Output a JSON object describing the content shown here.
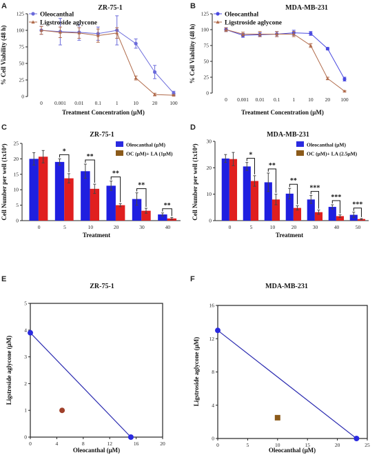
{
  "chart_data": [
    {
      "id": "A",
      "panel_label": "A",
      "type": "line",
      "title": "ZR-75-1",
      "xlabel": "Treatment Concentration (μM)",
      "ylabel": "% Cell Viability (48 h)",
      "categories": [
        "0",
        "0.001",
        "0.01",
        "0.1",
        "1",
        "10",
        "20",
        "100"
      ],
      "ylim": [
        0,
        125
      ],
      "yticks": [
        0,
        25,
        50,
        75,
        100,
        125
      ],
      "legend_position": "top-left",
      "series": [
        {
          "name": "Oleocanthal",
          "color": "#6b6bdb",
          "marker": "circle",
          "values": [
            100,
            98,
            97,
            95,
            100,
            80,
            37,
            5
          ],
          "errors": [
            6,
            20,
            12,
            10,
            22,
            7,
            10,
            3
          ]
        },
        {
          "name": "Ligstroside aglycone",
          "color": "#b06a4a",
          "marker": "triangle",
          "values": [
            100,
            97,
            96,
            92,
            96,
            28,
            3,
            2
          ],
          "errors": [
            6,
            8,
            8,
            10,
            8,
            3,
            2,
            1
          ]
        }
      ]
    },
    {
      "id": "B",
      "panel_label": "B",
      "type": "line",
      "title": "MDA-MB-231",
      "xlabel": "Treatment Concentration (μM)",
      "ylabel": "% Cell Viability (48 h)",
      "categories": [
        "0",
        "0.001",
        "0.01",
        "0.1",
        "1",
        "10",
        "20",
        "100"
      ],
      "ylim": [
        0,
        125
      ],
      "yticks": [
        0,
        25,
        50,
        75,
        100,
        125
      ],
      "legend_position": "top-left",
      "series": [
        {
          "name": "Oleocanthal",
          "color": "#4a4ae0",
          "marker": "circle",
          "values": [
            100,
            91,
            92,
            93,
            95,
            94,
            70,
            22
          ],
          "errors": [
            3,
            3,
            3,
            4,
            4,
            3,
            2,
            3
          ]
        },
        {
          "name": "Ligstroside aglycone",
          "color": "#b06a4a",
          "marker": "triangle",
          "values": [
            100,
            93,
            93,
            93,
            93,
            75,
            23,
            3
          ],
          "errors": [
            3,
            3,
            4,
            4,
            4,
            3,
            2,
            1
          ]
        }
      ]
    },
    {
      "id": "C",
      "panel_label": "C",
      "type": "bar",
      "title": "ZR-75-1",
      "xlabel": "Treatment",
      "ylabel": "Cell Number per well (1x10⁴)",
      "categories": [
        "0",
        "5",
        "10",
        "20",
        "30",
        "40"
      ],
      "ylim": [
        0,
        25
      ],
      "yticks": [
        0,
        5,
        10,
        15,
        20,
        25
      ],
      "legend_position": "top-right",
      "series": [
        {
          "name": "Oleocanthal (μM)",
          "color": "#1f1fe0",
          "legend_color": "#2a2ae0",
          "values": [
            20,
            19,
            16,
            11.3,
            7,
            2
          ],
          "errors": [
            2,
            1,
            2.3,
            1.5,
            2,
            0.5
          ]
        },
        {
          "name": "OC (μM)+ LA (1μM)",
          "color": "#e01f1f",
          "legend_color": "#8b5a1a",
          "values": [
            20.7,
            13.7,
            10.3,
            5,
            3.2,
            0.7
          ],
          "errors": [
            2,
            1.5,
            1.5,
            0.5,
            0.8,
            0.3
          ]
        }
      ],
      "significance": [
        "",
        "*",
        "**",
        "**",
        "**",
        "**"
      ]
    },
    {
      "id": "D",
      "panel_label": "D",
      "type": "bar",
      "title": "MDA-MB-231",
      "xlabel": "Treatment",
      "ylabel": "Cell Number per well (1x10⁴)",
      "categories": [
        "0",
        "5",
        "10",
        "20",
        "30",
        "40",
        "50"
      ],
      "ylim": [
        0,
        30
      ],
      "yticks": [
        0,
        10,
        20,
        30
      ],
      "legend_position": "top-right",
      "series": [
        {
          "name": "Oleocanthal (μM)",
          "color": "#1f1fe0",
          "legend_color": "#2a2ae0",
          "values": [
            23.5,
            20.5,
            14.5,
            10.2,
            8,
            5.2,
            2.2
          ],
          "errors": [
            1.5,
            1.5,
            3.5,
            2,
            1.5,
            0.8,
            1
          ]
        },
        {
          "name": "OC (μM)+ LA (2.5μM)",
          "color": "#e01f1f",
          "legend_color": "#8b5a1a",
          "values": [
            23.3,
            15,
            8,
            4.8,
            3.2,
            1.7,
            0.6
          ],
          "errors": [
            2.5,
            2,
            2,
            0.8,
            0.8,
            0.5,
            0.2
          ]
        }
      ],
      "significance": [
        "",
        "*",
        "**",
        "**",
        "***",
        "***",
        "***"
      ]
    },
    {
      "id": "E",
      "panel_label": "E",
      "type": "scatter",
      "title": "ZR-75-1",
      "xlabel": "Oleocanthal (μM)",
      "ylabel": "Ligstroside aglycone (μM)",
      "xlim": [
        0,
        20
      ],
      "ylim": [
        0,
        5
      ],
      "xticks": [
        0,
        4,
        8,
        12,
        16,
        20
      ],
      "yticks": [
        0,
        1,
        2,
        3,
        4,
        5
      ],
      "isobole": {
        "color": "#2a2ab0",
        "points": [
          [
            0,
            3.9
          ],
          [
            15.2,
            0
          ]
        ]
      },
      "combination_point": {
        "x": 4.8,
        "y": 1.0,
        "color": "#a0402a",
        "marker": "circle"
      }
    },
    {
      "id": "F",
      "panel_label": "F",
      "type": "scatter",
      "title": "MDA-MB-231",
      "xlabel": "Oleocanthal (μM)",
      "ylabel": "Ligstroside aglycone (μM)",
      "xlim": [
        0,
        25
      ],
      "ylim": [
        0,
        16
      ],
      "xticks": [
        0,
        5,
        10,
        15,
        20,
        25
      ],
      "yticks": [
        0,
        4,
        8,
        12,
        16
      ],
      "isobole": {
        "color": "#2a2ab0",
        "points": [
          [
            0,
            13
          ],
          [
            23.2,
            0
          ]
        ]
      },
      "combination_point": {
        "x": 10,
        "y": 2.5,
        "color": "#8b5a1a",
        "marker": "square"
      }
    }
  ]
}
